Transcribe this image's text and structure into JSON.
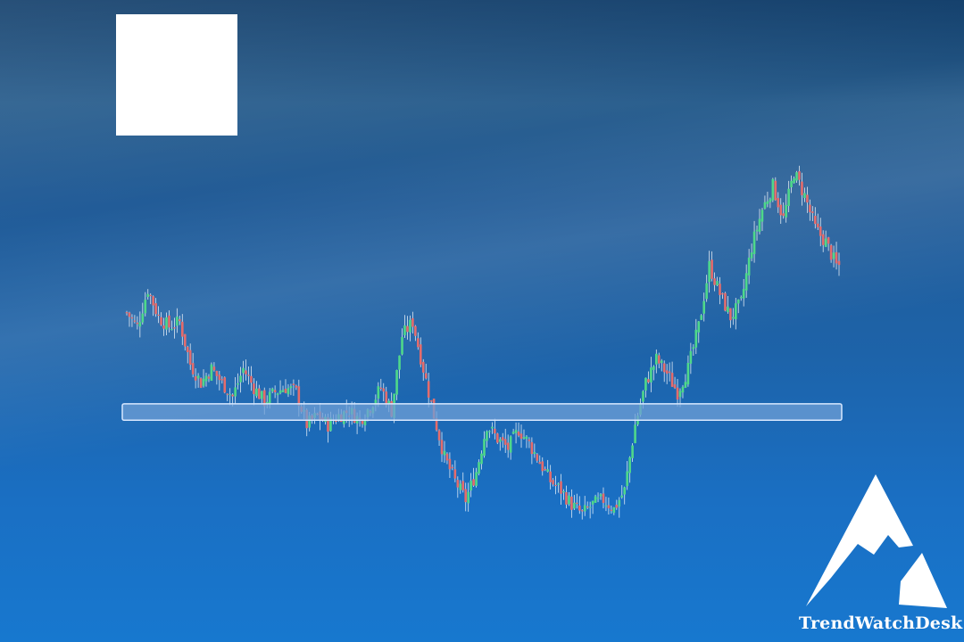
{
  "brand": {
    "name": "TrendWatchDesk",
    "logo": "mountain-peaks-icon"
  },
  "colors": {
    "up": "#4fd88a",
    "down": "#e46c6c",
    "wick": "#ffffff",
    "support_band_fill": "#6f9fd6",
    "support_band_stroke": "#d8e8ff"
  },
  "chart_data": {
    "type": "candlestick",
    "title": "",
    "xlabel": "",
    "ylabel": "",
    "axes_visible": false,
    "grid": false,
    "ylim": [
      0,
      100
    ],
    "support_zone": [
      35.0,
      38.5
    ],
    "close_path": [
      [
        0,
        58
      ],
      [
        4,
        55
      ],
      [
        8,
        63
      ],
      [
        12,
        57
      ],
      [
        16,
        55
      ],
      [
        20,
        56
      ],
      [
        24,
        47
      ],
      [
        28,
        43
      ],
      [
        32,
        46
      ],
      [
        36,
        43
      ],
      [
        40,
        40
      ],
      [
        44,
        46
      ],
      [
        48,
        42
      ],
      [
        52,
        39
      ],
      [
        56,
        41
      ],
      [
        60,
        42
      ],
      [
        64,
        41
      ],
      [
        68,
        34
      ],
      [
        72,
        36
      ],
      [
        76,
        34
      ],
      [
        80,
        36
      ],
      [
        84,
        37
      ],
      [
        88,
        35
      ],
      [
        92,
        38
      ],
      [
        96,
        42
      ],
      [
        100,
        37
      ],
      [
        104,
        53
      ],
      [
        108,
        56
      ],
      [
        112,
        46
      ],
      [
        116,
        36
      ],
      [
        120,
        27
      ],
      [
        124,
        22
      ],
      [
        128,
        18
      ],
      [
        132,
        24
      ],
      [
        136,
        34
      ],
      [
        140,
        31
      ],
      [
        144,
        29
      ],
      [
        148,
        33
      ],
      [
        152,
        30
      ],
      [
        156,
        26
      ],
      [
        160,
        22
      ],
      [
        164,
        20
      ],
      [
        168,
        17
      ],
      [
        172,
        15
      ],
      [
        176,
        17
      ],
      [
        180,
        18
      ],
      [
        184,
        16
      ],
      [
        188,
        20
      ],
      [
        192,
        34
      ],
      [
        196,
        43
      ],
      [
        200,
        48
      ],
      [
        204,
        45
      ],
      [
        208,
        41
      ],
      [
        212,
        46
      ],
      [
        216,
        55
      ],
      [
        220,
        68
      ],
      [
        224,
        62
      ],
      [
        228,
        57
      ],
      [
        232,
        60
      ],
      [
        236,
        72
      ],
      [
        240,
        80
      ],
      [
        244,
        85
      ],
      [
        248,
        78
      ],
      [
        252,
        88
      ],
      [
        256,
        83
      ],
      [
        260,
        76
      ],
      [
        264,
        73
      ],
      [
        268,
        68
      ]
    ],
    "candle_count": 270
  }
}
